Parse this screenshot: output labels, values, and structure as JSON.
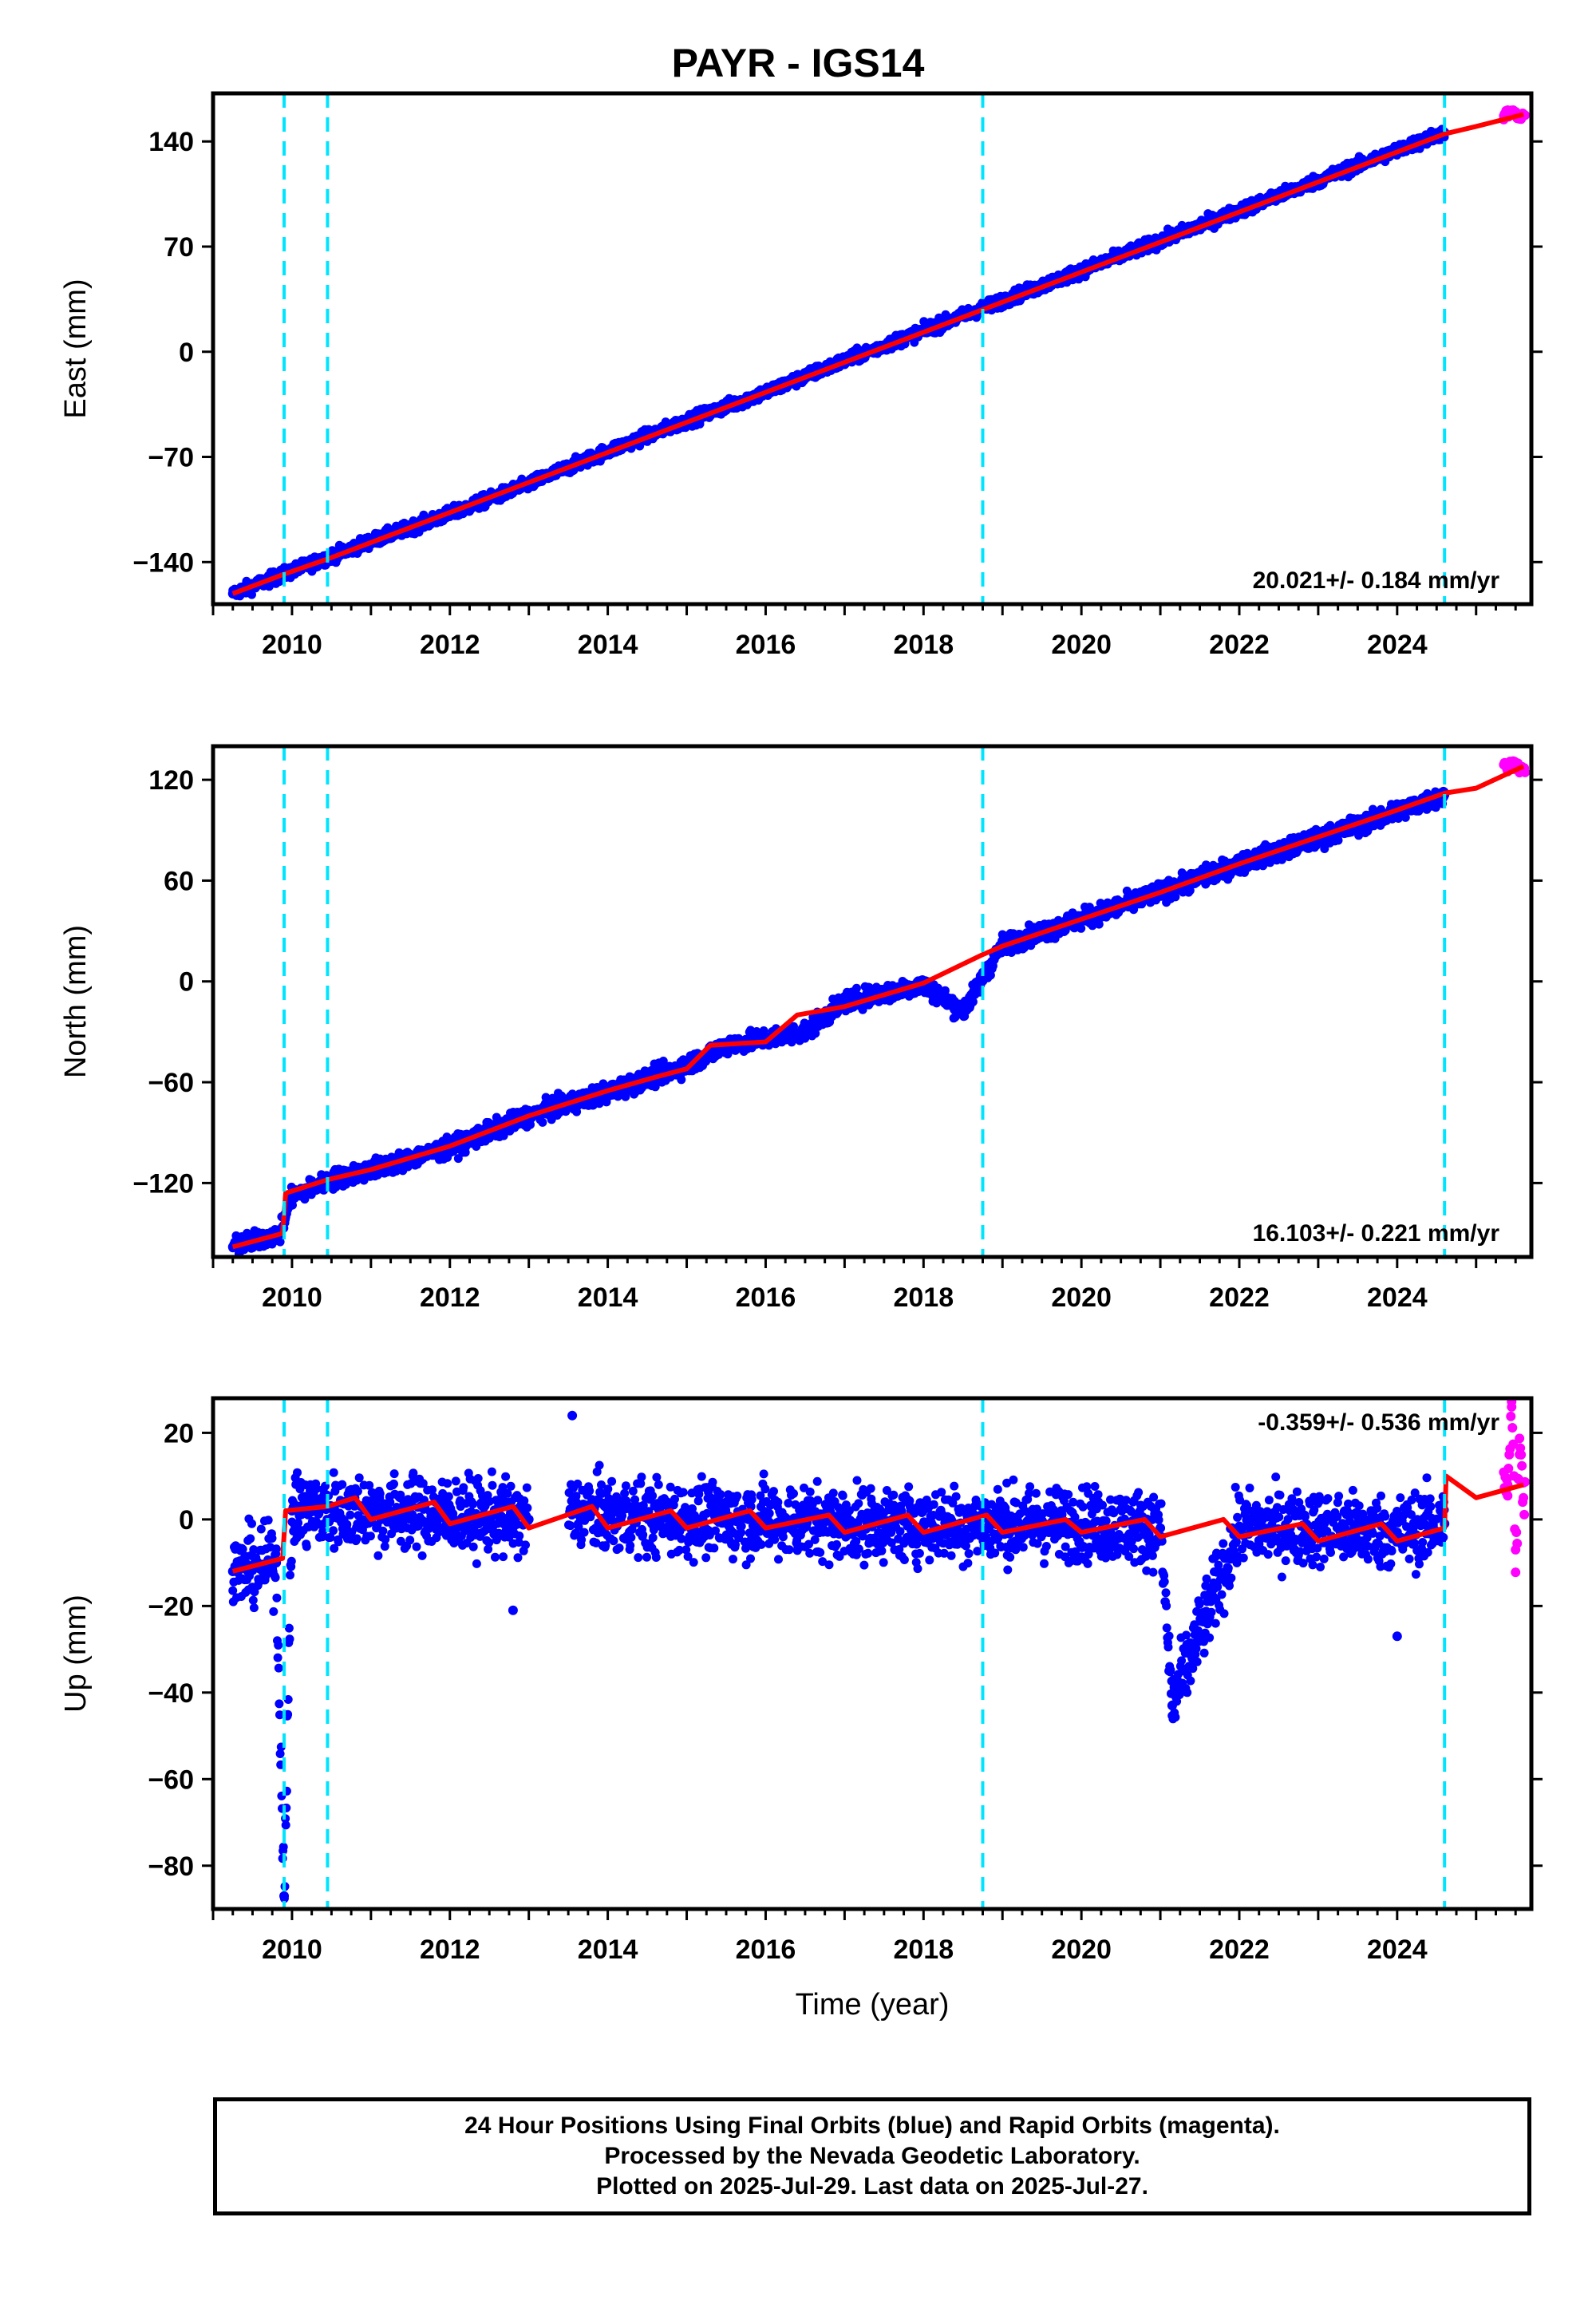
{
  "title": "PAYR - IGS14",
  "footer": {
    "line1": "24 Hour Positions Using Final Orbits (blue) and Rapid Orbits (magenta).",
    "line2": "Processed by the Nevada Geodetic Laboratory.",
    "line3": "Plotted on 2025-Jul-29. Last data on 2025-Jul-27."
  },
  "colors": {
    "final": "#0000ff",
    "rapid": "#ff00ff",
    "model": "#ff0000",
    "events": "#00e5ff",
    "frame": "#000000"
  },
  "chart_data": [
    {
      "type": "scatter",
      "ylabel": "East (mm)",
      "xlabel": "",
      "xlim": [
        2009.0,
        2025.7
      ],
      "ylim": [
        -168,
        172
      ],
      "xticks": [
        2010,
        2012,
        2014,
        2016,
        2018,
        2020,
        2022,
        2024
      ],
      "yticks": [
        -140,
        -70,
        0,
        70,
        140
      ],
      "rate_label": "20.021+/- 0.184 mm/yr",
      "event_lines": [
        2009.9,
        2010.45,
        2018.75,
        2024.6
      ],
      "series": [
        {
          "values": [
            [
              2009.25,
              -161
            ],
            [
              2010.0,
              -146
            ],
            [
              2011.0,
              -126
            ],
            [
              2012.0,
              -108
            ],
            [
              2013.0,
              -88
            ],
            [
              2014.0,
              -66
            ],
            [
              2015.0,
              -46
            ],
            [
              2016.0,
              -27
            ],
            [
              2017.0,
              -6
            ],
            [
              2018.0,
              14
            ],
            [
              2019.0,
              34
            ],
            [
              2020.0,
              54
            ],
            [
              2021.0,
              74
            ],
            [
              2022.0,
              94
            ],
            [
              2023.0,
              114
            ],
            [
              2024.0,
              134
            ],
            [
              2024.6,
              146
            ]
          ]
        },
        {
          "values": [
            [
              2025.35,
              157
            ],
            [
              2025.45,
              160
            ],
            [
              2025.55,
              155
            ],
            [
              2025.6,
              158
            ]
          ]
        },
        {
          "values": [
            [
              2009.25,
              -161
            ],
            [
              2009.9,
              -148
            ],
            [
              2010.45,
              -138
            ],
            [
              2011.0,
              -127
            ],
            [
              2012.0,
              -107
            ],
            [
              2013.0,
              -87
            ],
            [
              2014.0,
              -67
            ],
            [
              2015.0,
              -47
            ],
            [
              2016.0,
              -27
            ],
            [
              2017.0,
              -7
            ],
            [
              2018.0,
              13
            ],
            [
              2019.0,
              33
            ],
            [
              2020.0,
              53
            ],
            [
              2021.0,
              73
            ],
            [
              2022.0,
              93
            ],
            [
              2023.0,
              113
            ],
            [
              2024.0,
              133
            ],
            [
              2024.6,
              145
            ],
            [
              2025.0,
              150
            ],
            [
              2025.6,
              158
            ]
          ]
        }
      ]
    },
    {
      "type": "scatter",
      "ylabel": "North (mm)",
      "xlabel": "",
      "xlim": [
        2009.0,
        2025.7
      ],
      "ylim": [
        -164,
        140
      ],
      "xticks": [
        2010,
        2012,
        2014,
        2016,
        2018,
        2020,
        2022,
        2024
      ],
      "yticks": [
        -120,
        -60,
        0,
        60,
        120
      ],
      "rate_label": "16.103+/- 0.221 mm/yr",
      "event_lines": [
        2009.9,
        2010.45,
        2018.75,
        2024.6
      ],
      "series": [
        {
          "values": [
            [
              2009.25,
              -158
            ],
            [
              2009.85,
              -150
            ],
            [
              2010.0,
              -128
            ],
            [
              2010.5,
              -118
            ],
            [
              2011.0,
              -112
            ],
            [
              2012.0,
              -99
            ],
            [
              2013.0,
              -80
            ],
            [
              2014.0,
              -66
            ],
            [
              2015.0,
              -50
            ],
            [
              2015.5,
              -38
            ],
            [
              2016.5,
              -30
            ],
            [
              2017.0,
              -12
            ],
            [
              2018.0,
              -2
            ],
            [
              2018.5,
              -18
            ],
            [
              2019.0,
              22
            ],
            [
              2020.0,
              37
            ],
            [
              2021.0,
              53
            ],
            [
              2022.0,
              70
            ],
            [
              2023.0,
              85
            ],
            [
              2024.0,
              101
            ],
            [
              2024.6,
              111
            ]
          ]
        },
        {
          "values": [
            [
              2025.4,
              128
            ],
            [
              2025.5,
              130
            ],
            [
              2025.6,
              126
            ]
          ]
        },
        {
          "values": [
            [
              2009.25,
              -158
            ],
            [
              2009.88,
              -150
            ],
            [
              2009.92,
              -126
            ],
            [
              2010.45,
              -118
            ],
            [
              2011.0,
              -112
            ],
            [
              2012.0,
              -98
            ],
            [
              2013.0,
              -80
            ],
            [
              2014.0,
              -65
            ],
            [
              2014.6,
              -57
            ],
            [
              2015.0,
              -52
            ],
            [
              2015.3,
              -38
            ],
            [
              2016.0,
              -36
            ],
            [
              2016.4,
              -20
            ],
            [
              2017.0,
              -15
            ],
            [
              2018.0,
              -1
            ],
            [
              2018.75,
              16
            ],
            [
              2019.0,
              21
            ],
            [
              2020.0,
              37
            ],
            [
              2021.0,
              53
            ],
            [
              2022.0,
              70
            ],
            [
              2023.0,
              86
            ],
            [
              2024.0,
              102
            ],
            [
              2024.6,
              112
            ],
            [
              2025.0,
              115
            ],
            [
              2025.6,
              128
            ]
          ]
        }
      ]
    },
    {
      "type": "scatter",
      "ylabel": "Up (mm)",
      "xlabel": "Time (year)",
      "xlim": [
        2009.0,
        2025.7
      ],
      "ylim": [
        -90,
        28
      ],
      "xticks": [
        2010,
        2012,
        2014,
        2016,
        2018,
        2020,
        2022,
        2024
      ],
      "yticks": [
        -80,
        -60,
        -40,
        -20,
        0,
        20
      ],
      "rate_label": "-0.359+/- 0.536 mm/yr",
      "event_lines": [
        2009.9,
        2010.45,
        2018.75,
        2024.6
      ],
      "series": [
        {
          "values": [
            [
              2009.25,
              -12
            ],
            [
              2009.8,
              -10
            ],
            [
              2010.0,
              2
            ],
            [
              2011.0,
              2
            ],
            [
              2012.0,
              1
            ],
            [
              2013.0,
              0
            ],
            [
              2013.6,
              2
            ],
            [
              2014.0,
              1
            ],
            [
              2015.0,
              0
            ],
            [
              2016.0,
              0
            ],
            [
              2017.0,
              -1
            ],
            [
              2018.0,
              -1
            ],
            [
              2019.0,
              -1
            ],
            [
              2020.0,
              -1
            ],
            [
              2021.0,
              -2
            ],
            [
              2022.0,
              -2
            ],
            [
              2023.0,
              -2
            ],
            [
              2024.0,
              -3
            ],
            [
              2024.6,
              -1
            ],
            [
              2009.9,
              -87
            ],
            [
              2021.15,
              -43
            ],
            [
              2012.8,
              -21
            ],
            [
              2013.55,
              24
            ],
            [
              2024.0,
              -27
            ]
          ]
        },
        {
          "values": [
            [
              2025.4,
              8
            ],
            [
              2025.45,
              26
            ],
            [
              2025.5,
              -7
            ],
            [
              2025.55,
              15
            ],
            [
              2025.6,
              5
            ]
          ]
        },
        {
          "values": [
            [
              2009.25,
              -12
            ],
            [
              2009.88,
              -9
            ],
            [
              2009.92,
              2
            ],
            [
              2010.45,
              3
            ],
            [
              2010.8,
              5
            ],
            [
              2011.0,
              0
            ],
            [
              2011.8,
              4
            ],
            [
              2012.0,
              -1
            ],
            [
              2012.8,
              3
            ],
            [
              2013.0,
              -2
            ],
            [
              2013.8,
              3
            ],
            [
              2014.0,
              -2
            ],
            [
              2014.8,
              2
            ],
            [
              2015.0,
              -2
            ],
            [
              2015.8,
              2
            ],
            [
              2016.0,
              -2
            ],
            [
              2016.8,
              1
            ],
            [
              2017.0,
              -3
            ],
            [
              2017.8,
              1
            ],
            [
              2018.0,
              -3
            ],
            [
              2018.8,
              1
            ],
            [
              2019.0,
              -3
            ],
            [
              2019.8,
              0
            ],
            [
              2020.0,
              -3
            ],
            [
              2020.8,
              0
            ],
            [
              2021.0,
              -4
            ],
            [
              2021.8,
              0
            ],
            [
              2022.0,
              -4
            ],
            [
              2022.8,
              -1
            ],
            [
              2023.0,
              -5
            ],
            [
              2023.8,
              -1
            ],
            [
              2024.0,
              -5
            ],
            [
              2024.6,
              -2
            ],
            [
              2024.62,
              10
            ],
            [
              2025.0,
              5
            ],
            [
              2025.6,
              8
            ]
          ]
        }
      ]
    }
  ]
}
